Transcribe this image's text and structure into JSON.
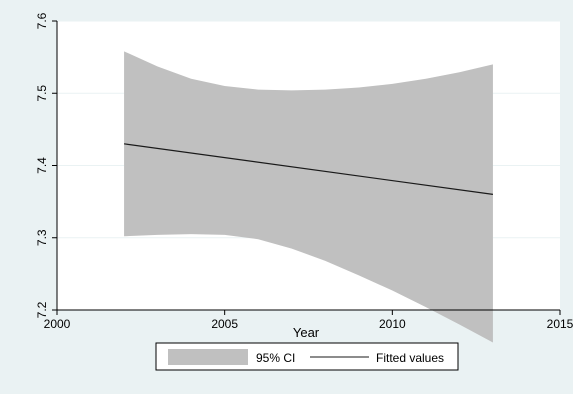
{
  "chart_data": {
    "type": "area",
    "xlabel": "Year",
    "ylabel": "",
    "title": "",
    "xlim": [
      2000,
      2015
    ],
    "ylim": [
      7.2,
      7.6
    ],
    "x_ticks": [
      2000,
      2005,
      2010,
      2015
    ],
    "y_ticks": [
      7.2,
      7.3,
      7.4,
      7.5,
      7.6
    ],
    "x_tick_labels": [
      "2000",
      "2005",
      "2010",
      "2015"
    ],
    "y_tick_labels": [
      "7.2",
      "7.3",
      "7.4",
      "7.5",
      "7.6"
    ],
    "grid": true,
    "legend_position": "bottom",
    "series": [
      {
        "name": "95% CI",
        "kind": "band",
        "color": "#c0c0c0",
        "x": [
          2002,
          2003,
          2004,
          2005,
          2006,
          2007,
          2008,
          2009,
          2010,
          2011,
          2012,
          2013
        ],
        "upper": [
          7.558,
          7.537,
          7.52,
          7.51,
          7.505,
          7.504,
          7.505,
          7.508,
          7.513,
          7.52,
          7.529,
          7.54
        ],
        "lower": [
          7.302,
          7.304,
          7.305,
          7.304,
          7.298,
          7.285,
          7.268,
          7.248,
          7.227,
          7.204,
          7.18,
          7.155
        ]
      },
      {
        "name": "Fitted values",
        "kind": "line",
        "color": "#1a1a1a",
        "x": [
          2002,
          2013
        ],
        "y": [
          7.43,
          7.36
        ]
      }
    ]
  }
}
